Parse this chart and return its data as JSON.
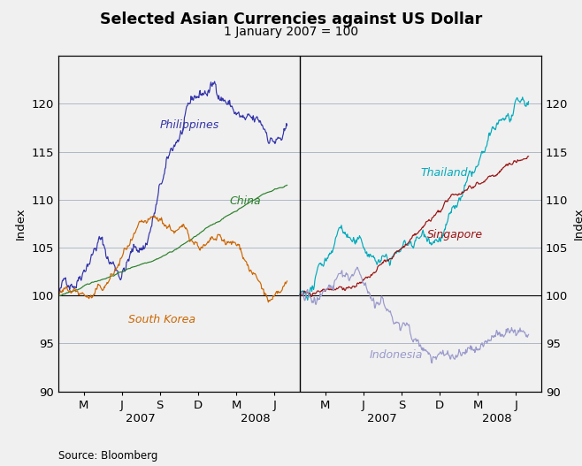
{
  "title": "Selected Asian Currencies against US Dollar",
  "subtitle": "1 January 2007 = 100",
  "ylabel_left": "Index",
  "ylabel_right": "Index",
  "source": "Source: Bloomberg",
  "ylim": [
    90,
    125
  ],
  "yticks": [
    90,
    95,
    100,
    105,
    110,
    115,
    120
  ],
  "background_color": "#f0f0f0",
  "plot_bg_color": "#f0f0f0",
  "colors": {
    "philippines": "#3333aa",
    "china": "#2a802a",
    "south_korea": "#cc6600",
    "thailand": "#00aabb",
    "singapore": "#991111",
    "indonesia": "#9999cc"
  },
  "left_ticks_x": [
    2,
    5,
    8,
    11,
    14,
    17
  ],
  "left_ticks_lab": [
    "M",
    "J",
    "S",
    "D",
    "M",
    "J"
  ],
  "right_ticks_x": [
    21,
    24,
    27,
    30,
    33,
    36
  ],
  "right_ticks_lab": [
    "M",
    "J",
    "S",
    "D",
    "M",
    "J"
  ],
  "left_year1_x": 6.5,
  "left_year1": "2007",
  "left_year2_x": 15.5,
  "left_year2": "2008",
  "right_year1_x": 25.5,
  "right_year1": "2007",
  "right_year2_x": 34.5,
  "right_year2": "2008",
  "divider_x": 19.0,
  "xlim": [
    0,
    38
  ]
}
